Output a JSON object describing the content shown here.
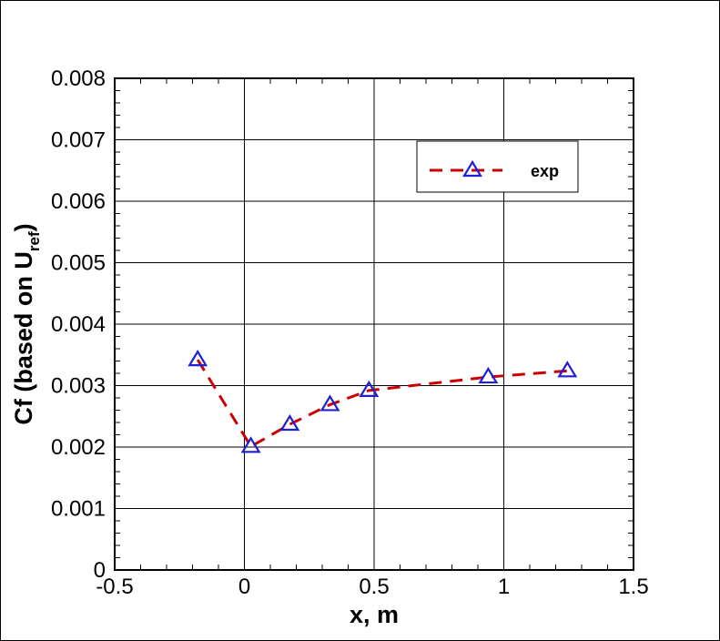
{
  "chart_data": {
    "type": "line",
    "xlabel": "x, m",
    "ylabel": "Cf (based on U",
    "ylabel_subscript": "ref",
    "ylabel_suffix": ")",
    "xlim": [
      -0.5,
      1.5
    ],
    "ylim": [
      0,
      0.008
    ],
    "x_ticks": [
      -0.5,
      0,
      0.5,
      1,
      1.5
    ],
    "x_tick_labels": [
      "-0.5",
      "0",
      "0.5",
      "1",
      "1.5"
    ],
    "y_ticks": [
      0,
      0.001,
      0.002,
      0.003,
      0.004,
      0.005,
      0.006,
      0.007,
      0.008
    ],
    "y_tick_labels": [
      "0",
      "0.001",
      "0.002",
      "0.003",
      "0.004",
      "0.005",
      "0.006",
      "0.007",
      "0.008"
    ],
    "grid": true,
    "legend_position": "top-right",
    "series": [
      {
        "name": "exp",
        "line_color": "#cc0000",
        "line_style": "dashed",
        "marker": "triangle",
        "marker_color": "#1f1fd6",
        "x": [
          -0.18,
          0.025,
          0.175,
          0.33,
          0.48,
          0.94,
          1.245
        ],
        "y": [
          0.00342,
          0.00201,
          0.00237,
          0.00269,
          0.00292,
          0.00314,
          0.00324
        ]
      }
    ]
  }
}
